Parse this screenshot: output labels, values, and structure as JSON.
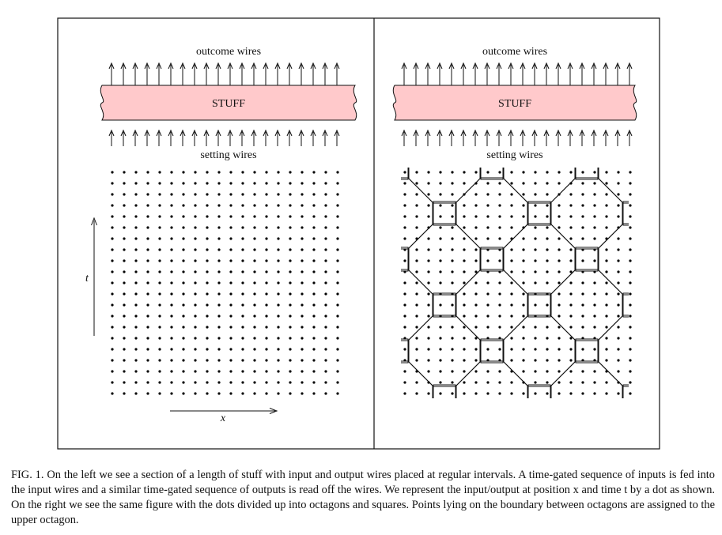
{
  "figure": {
    "left_panel": {
      "top_label": "outcome wires",
      "stuff_label": "STUFF",
      "bottom_label": "setting wires",
      "t_axis_label": "t",
      "x_axis_label": "x"
    },
    "right_panel": {
      "top_label": "outcome wires",
      "stuff_label": "STUFF",
      "bottom_label": "setting wires"
    },
    "colors": {
      "stuff_fill": "#ffc9cb",
      "stroke": "#111111",
      "dot": "#000000"
    },
    "wire_count": 20,
    "dot_grid": {
      "columns": 20,
      "rows": 21
    }
  },
  "caption": {
    "text": "FIG. 1. On the left we see a section of a length of stuff with input and output wires placed at regular intervals. A time-gated sequence of inputs is fed into the input wires and a similar time-gated sequence of outputs is read off the wires. We represent the input/output at position x and time t by a dot as shown. On the right we see the same figure with the dots divided up into octagons and squares. Points lying on the boundary between octagons are assigned to the upper octagon."
  }
}
